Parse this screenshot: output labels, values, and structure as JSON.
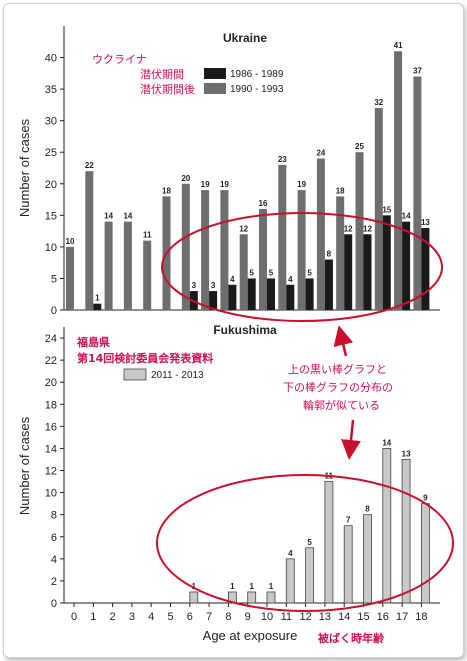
{
  "colors": {
    "annotation": "#d0105a",
    "bar_dark": "#1a1a1a",
    "bar_mid": "#6e6e6e",
    "bar_light": "#c8c8c8",
    "ellipse": "#c8102e"
  },
  "chart_data": [
    {
      "type": "bar",
      "title": "Ukraine",
      "ylabel": "Number of cases",
      "ylim": [
        0,
        45
      ],
      "yticks": [
        0,
        5,
        10,
        15,
        20,
        25,
        30,
        35,
        40
      ],
      "categories": [
        "0",
        "1",
        "2",
        "3",
        "4",
        "5",
        "6",
        "7",
        "8",
        "9",
        "10",
        "11",
        "12",
        "13",
        "14",
        "15",
        "16",
        "17",
        "18"
      ],
      "series": [
        {
          "name": "1986 - 1989",
          "values": [
            0,
            1,
            0,
            0,
            0,
            0,
            3,
            3,
            4,
            5,
            5,
            4,
            5,
            8,
            12,
            12,
            15,
            14,
            13
          ]
        },
        {
          "name": "1990 - 1993",
          "values": [
            10,
            22,
            14,
            14,
            11,
            18,
            20,
            19,
            19,
            12,
            16,
            23,
            19,
            24,
            18,
            25,
            32,
            41,
            37
          ]
        }
      ],
      "legend": {
        "position": "top-center",
        "labels_jp": [
          "潜伏期間",
          "潜伏期間後"
        ]
      },
      "country_label_jp": "ウクライナ"
    },
    {
      "type": "bar",
      "title": "Fukushima",
      "xlabel": "Age at exposure",
      "ylabel": "Number of cases",
      "ylim": [
        0,
        25
      ],
      "yticks": [
        0,
        2,
        4,
        6,
        8,
        10,
        12,
        14,
        16,
        18,
        20,
        22,
        24
      ],
      "categories": [
        "0",
        "1",
        "2",
        "3",
        "4",
        "5",
        "6",
        "7",
        "8",
        "9",
        "10",
        "11",
        "12",
        "13",
        "14",
        "15",
        "16",
        "17",
        "18"
      ],
      "series": [
        {
          "name": "2011 - 2013",
          "values": [
            0,
            0,
            0,
            0,
            0,
            0,
            1,
            0,
            1,
            1,
            1,
            4,
            5,
            11,
            7,
            8,
            14,
            13,
            9
          ]
        }
      ],
      "legend": {
        "position": "top-center"
      },
      "source_lines_jp": [
        "福島県",
        "第14回検討委員会発表資料"
      ]
    }
  ],
  "annotations": {
    "comparison_lines": [
      "上の黒い棒グラフと",
      "下の棒グラフの分布の",
      "輪郭が似ている"
    ],
    "xaxis_jp": "被ばく時年齢"
  }
}
